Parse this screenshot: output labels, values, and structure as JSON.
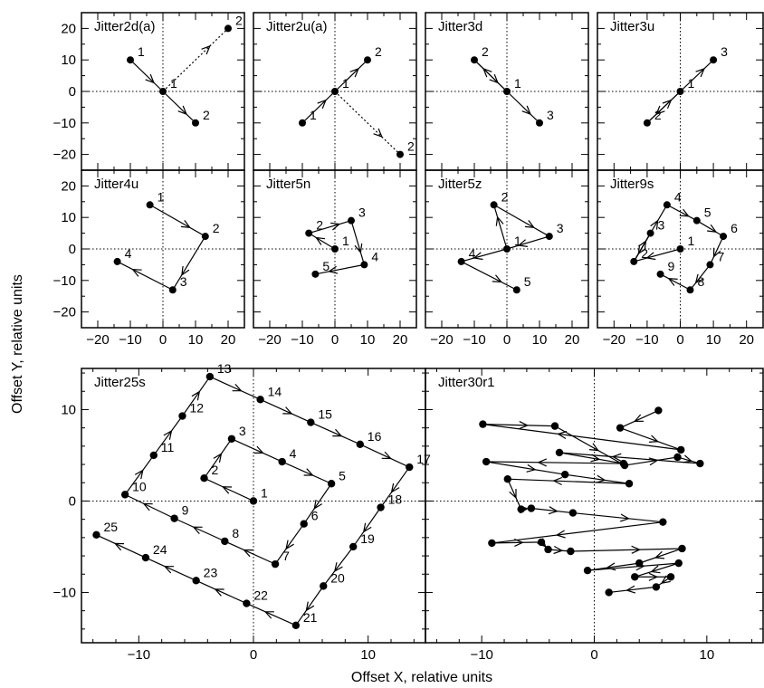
{
  "chart_data": {
    "type": "scatter",
    "x_label": "Offset X, relative units",
    "y_label": "Offset Y, relative units",
    "small_panels": {
      "xlim": [
        -25,
        25
      ],
      "ylim": [
        -25,
        25
      ],
      "ticks_major": [
        -20,
        -10,
        0,
        10,
        20
      ],
      "panels": [
        {
          "title": "Jitter2d(a)",
          "points": [
            [
              -10,
              10
            ],
            [
              0,
              0
            ],
            [
              10,
              -10
            ],
            [
              20,
              20
            ]
          ],
          "labels": [
            "1",
            "1",
            "2",
            "2"
          ],
          "segments": [
            {
              "from": 0,
              "to": 1
            },
            {
              "from": 1,
              "to": 2
            },
            {
              "from": 1,
              "to": 3,
              "style": "dotted"
            }
          ]
        },
        {
          "title": "Jitter2u(a)",
          "points": [
            [
              -10,
              -10
            ],
            [
              0,
              0
            ],
            [
              10,
              10
            ],
            [
              20,
              -20
            ]
          ],
          "labels": [
            "1",
            "1",
            "2",
            "2"
          ],
          "segments": [
            {
              "from": 0,
              "to": 1
            },
            {
              "from": 1,
              "to": 2
            },
            {
              "from": 1,
              "to": 3,
              "style": "dotted"
            }
          ]
        },
        {
          "title": "Jitter3d",
          "points": [
            [
              -10,
              10
            ],
            [
              0,
              0
            ],
            [
              10,
              -10
            ]
          ],
          "labels": [
            "2",
            "1",
            "3"
          ],
          "segments": [
            {
              "from": 1,
              "to": 0
            },
            {
              "from": 0,
              "to": 1
            },
            {
              "from": 1,
              "to": 2
            }
          ]
        },
        {
          "title": "Jitter3u",
          "points": [
            [
              -10,
              -10
            ],
            [
              0,
              0
            ],
            [
              10,
              10
            ]
          ],
          "labels": [
            "2",
            "1",
            "3"
          ],
          "segments": [
            {
              "from": 1,
              "to": 0
            },
            {
              "from": 0,
              "to": 1
            },
            {
              "from": 1,
              "to": 2
            }
          ]
        },
        {
          "title": "Jitter4u",
          "points": [
            [
              -4,
              14
            ],
            [
              13,
              4
            ],
            [
              3,
              -13
            ],
            [
              -14,
              -4
            ]
          ],
          "labels": [
            "1",
            "2",
            "3",
            "4"
          ],
          "segments": [
            {
              "from": 0,
              "to": 1
            },
            {
              "from": 1,
              "to": 2
            },
            {
              "from": 2,
              "to": 3
            }
          ]
        },
        {
          "title": "Jitter5n",
          "points": [
            [
              0,
              0
            ],
            [
              -8,
              5
            ],
            [
              5,
              9
            ],
            [
              9,
              -5
            ],
            [
              -6,
              -8
            ]
          ],
          "labels": [
            "1",
            "2",
            "3",
            "4",
            "5"
          ],
          "segments": [
            {
              "from": 0,
              "to": 1
            },
            {
              "from": 1,
              "to": 2
            },
            {
              "from": 2,
              "to": 3
            },
            {
              "from": 3,
              "to": 4
            }
          ]
        },
        {
          "title": "Jitter5z",
          "points": [
            [
              0,
              0
            ],
            [
              -4,
              14
            ],
            [
              13,
              4
            ],
            [
              -14,
              -4
            ],
            [
              3,
              -13
            ]
          ],
          "labels": [
            "1",
            "2",
            "3",
            "4",
            "5"
          ],
          "segments": [
            {
              "from": 0,
              "to": 1
            },
            {
              "from": 1,
              "to": 2
            },
            {
              "from": 2,
              "to": 0
            },
            {
              "from": 0,
              "to": 3
            },
            {
              "from": 3,
              "to": 4
            }
          ]
        },
        {
          "title": "Jitter9s",
          "points": [
            [
              0,
              0
            ],
            [
              -14,
              -4
            ],
            [
              -9,
              5
            ],
            [
              -4,
              14
            ],
            [
              5,
              9
            ],
            [
              13,
              4
            ],
            [
              9,
              -5
            ],
            [
              3,
              -13
            ],
            [
              -6,
              -8
            ]
          ],
          "labels": [
            "1",
            "2",
            "3",
            "4",
            "5",
            "6",
            "7",
            "8",
            "9"
          ],
          "segments": [
            {
              "from": 0,
              "to": 1
            },
            {
              "from": 1,
              "to": 2
            },
            {
              "from": 2,
              "to": 1
            },
            {
              "from": 1,
              "to": 3
            },
            {
              "from": 3,
              "to": 4
            },
            {
              "from": 4,
              "to": 5
            },
            {
              "from": 5,
              "to": 6
            },
            {
              "from": 6,
              "to": 7
            },
            {
              "from": 7,
              "to": 8
            }
          ]
        }
      ]
    },
    "large_panels": {
      "xlim": [
        -15,
        15
      ],
      "ylim": [
        -15.5,
        14.5
      ],
      "ticks_major": [
        -10,
        0,
        10
      ],
      "panels": [
        {
          "title": "Jitter25s",
          "points": [
            [
              0,
              0
            ],
            [
              -4.3,
              2.5
            ],
            [
              -1.9,
              6.8
            ],
            [
              2.5,
              4.3
            ],
            [
              6.8,
              1.9
            ],
            [
              4.4,
              -2.5
            ],
            [
              1.9,
              -6.9
            ],
            [
              -2.5,
              -4.4
            ],
            [
              -6.9,
              -1.9
            ],
            [
              -11.2,
              0.7
            ],
            [
              -8.7,
              5
            ],
            [
              -6.2,
              9.3
            ],
            [
              -3.8,
              13.6
            ],
            [
              0.6,
              11.1
            ],
            [
              5,
              8.6
            ],
            [
              9.3,
              6.2
            ],
            [
              13.6,
              3.7
            ],
            [
              11.1,
              -0.7
            ],
            [
              8.7,
              -5
            ],
            [
              6.1,
              -9.3
            ],
            [
              3.7,
              -13.6
            ],
            [
              -0.6,
              -11.2
            ],
            [
              -5,
              -8.7
            ],
            [
              -9.4,
              -6.2
            ],
            [
              -13.7,
              -3.7
            ]
          ],
          "labels": [
            "1",
            "2",
            "3",
            "4",
            "5",
            "6",
            "7",
            "8",
            "9",
            "10",
            "11",
            "12",
            "13",
            "14",
            "15",
            "16",
            "17",
            "18",
            "19",
            "20",
            "21",
            "22",
            "23",
            "24",
            "25"
          ],
          "chain": true
        },
        {
          "title": "Jitter30r1",
          "points": [
            [
              5.7,
              9.9
            ],
            [
              2.3,
              8
            ],
            [
              7.7,
              5.6
            ],
            [
              -9.9,
              8.4
            ],
            [
              -3.5,
              8.2
            ],
            [
              2.7,
              3.9
            ],
            [
              7.4,
              4.8
            ],
            [
              9.4,
              4.1
            ],
            [
              -3.1,
              5.3
            ],
            [
              2.6,
              4.1
            ],
            [
              -9.6,
              4.3
            ],
            [
              -2.6,
              2.9
            ],
            [
              3.1,
              1.9
            ],
            [
              -7.7,
              2.4
            ],
            [
              -6.5,
              -0.9
            ],
            [
              -5.6,
              -0.8
            ],
            [
              -1.9,
              -1.3
            ],
            [
              6.1,
              -2.3
            ],
            [
              -9.1,
              -4.6
            ],
            [
              -4.7,
              -4.5
            ],
            [
              -4.1,
              -5.3
            ],
            [
              -2.1,
              -5.5
            ],
            [
              7.8,
              -5.2
            ],
            [
              4,
              -6.8
            ],
            [
              -0.6,
              -7.6
            ],
            [
              7.5,
              -6.8
            ],
            [
              3.6,
              -8.3
            ],
            [
              6.8,
              -8.3
            ],
            [
              5.5,
              -9.4
            ],
            [
              1.3,
              -10
            ]
          ],
          "labels": [],
          "chain": true,
          "chain_order": [
            0,
            1,
            2,
            3,
            4,
            5,
            6,
            7,
            8,
            9,
            10,
            11,
            12,
            13,
            14,
            15,
            16,
            17,
            18,
            19,
            20,
            21,
            22,
            23,
            24,
            25,
            26,
            27,
            28,
            29
          ]
        }
      ]
    }
  }
}
